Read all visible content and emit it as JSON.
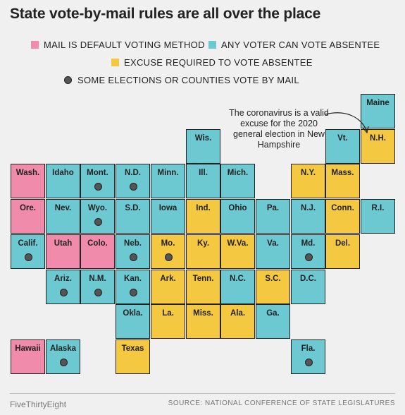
{
  "title": "State vote-by-mail rules are all over the place",
  "legend": {
    "default": "MAIL IS DEFAULT VOTING METHOD",
    "any": "ANY VOTER CAN VOTE ABSENTEE",
    "excuse": "EXCUSE REQUIRED TO VOTE ABSENTEE",
    "dot": "SOME ELECTIONS OR COUNTIES VOTE BY MAIL"
  },
  "colors": {
    "default": "#F08BAB",
    "any": "#6CC8D1",
    "excuse": "#F5C842",
    "background": "#F0F0F0"
  },
  "annotation": "The coronavirus is a valid excuse for the 2020 general election in New Hampshire",
  "states": [
    {
      "abbr": "Maine",
      "col": 10,
      "row": 0,
      "category": "any",
      "dot": false
    },
    {
      "abbr": "Wis.",
      "col": 5,
      "row": 1,
      "category": "any",
      "dot": false
    },
    {
      "abbr": "Vt.",
      "col": 9,
      "row": 1,
      "category": "any",
      "dot": false
    },
    {
      "abbr": "N.H.",
      "col": 10,
      "row": 1,
      "category": "excuse",
      "dot": false
    },
    {
      "abbr": "Wash.",
      "col": 0,
      "row": 2,
      "category": "default",
      "dot": false
    },
    {
      "abbr": "Idaho",
      "col": 1,
      "row": 2,
      "category": "any",
      "dot": false
    },
    {
      "abbr": "Mont.",
      "col": 2,
      "row": 2,
      "category": "any",
      "dot": true
    },
    {
      "abbr": "N.D.",
      "col": 3,
      "row": 2,
      "category": "any",
      "dot": true
    },
    {
      "abbr": "Minn.",
      "col": 4,
      "row": 2,
      "category": "any",
      "dot": false
    },
    {
      "abbr": "Ill.",
      "col": 5,
      "row": 2,
      "category": "any",
      "dot": false
    },
    {
      "abbr": "Mich.",
      "col": 6,
      "row": 2,
      "category": "any",
      "dot": false
    },
    {
      "abbr": "N.Y.",
      "col": 8,
      "row": 2,
      "category": "excuse",
      "dot": false
    },
    {
      "abbr": "Mass.",
      "col": 9,
      "row": 2,
      "category": "excuse",
      "dot": false
    },
    {
      "abbr": "Ore.",
      "col": 0,
      "row": 3,
      "category": "default",
      "dot": false
    },
    {
      "abbr": "Nev.",
      "col": 1,
      "row": 3,
      "category": "any",
      "dot": false
    },
    {
      "abbr": "Wyo.",
      "col": 2,
      "row": 3,
      "category": "any",
      "dot": true
    },
    {
      "abbr": "S.D.",
      "col": 3,
      "row": 3,
      "category": "any",
      "dot": false
    },
    {
      "abbr": "Iowa",
      "col": 4,
      "row": 3,
      "category": "any",
      "dot": false
    },
    {
      "abbr": "Ind.",
      "col": 5,
      "row": 3,
      "category": "excuse",
      "dot": false
    },
    {
      "abbr": "Ohio",
      "col": 6,
      "row": 3,
      "category": "any",
      "dot": false
    },
    {
      "abbr": "Pa.",
      "col": 7,
      "row": 3,
      "category": "any",
      "dot": false
    },
    {
      "abbr": "N.J.",
      "col": 8,
      "row": 3,
      "category": "any",
      "dot": false
    },
    {
      "abbr": "Conn.",
      "col": 9,
      "row": 3,
      "category": "excuse",
      "dot": false
    },
    {
      "abbr": "R.I.",
      "col": 10,
      "row": 3,
      "category": "any",
      "dot": false
    },
    {
      "abbr": "Calif.",
      "col": 0,
      "row": 4,
      "category": "any",
      "dot": true
    },
    {
      "abbr": "Utah",
      "col": 1,
      "row": 4,
      "category": "default",
      "dot": false
    },
    {
      "abbr": "Colo.",
      "col": 2,
      "row": 4,
      "category": "default",
      "dot": false
    },
    {
      "abbr": "Neb.",
      "col": 3,
      "row": 4,
      "category": "any",
      "dot": true
    },
    {
      "abbr": "Mo.",
      "col": 4,
      "row": 4,
      "category": "excuse",
      "dot": true
    },
    {
      "abbr": "Ky.",
      "col": 5,
      "row": 4,
      "category": "excuse",
      "dot": false
    },
    {
      "abbr": "W.Va.",
      "col": 6,
      "row": 4,
      "category": "excuse",
      "dot": false
    },
    {
      "abbr": "Va.",
      "col": 7,
      "row": 4,
      "category": "any",
      "dot": false
    },
    {
      "abbr": "Md.",
      "col": 8,
      "row": 4,
      "category": "any",
      "dot": true
    },
    {
      "abbr": "Del.",
      "col": 9,
      "row": 4,
      "category": "excuse",
      "dot": false
    },
    {
      "abbr": "Ariz.",
      "col": 1,
      "row": 5,
      "category": "any",
      "dot": true
    },
    {
      "abbr": "N.M.",
      "col": 2,
      "row": 5,
      "category": "any",
      "dot": true
    },
    {
      "abbr": "Kan.",
      "col": 3,
      "row": 5,
      "category": "any",
      "dot": true
    },
    {
      "abbr": "Ark.",
      "col": 4,
      "row": 5,
      "category": "excuse",
      "dot": false
    },
    {
      "abbr": "Tenn.",
      "col": 5,
      "row": 5,
      "category": "excuse",
      "dot": false
    },
    {
      "abbr": "N.C.",
      "col": 6,
      "row": 5,
      "category": "any",
      "dot": false
    },
    {
      "abbr": "S.C.",
      "col": 7,
      "row": 5,
      "category": "excuse",
      "dot": false
    },
    {
      "abbr": "D.C.",
      "col": 8,
      "row": 5,
      "category": "any",
      "dot": false
    },
    {
      "abbr": "Okla.",
      "col": 3,
      "row": 6,
      "category": "any",
      "dot": false
    },
    {
      "abbr": "La.",
      "col": 4,
      "row": 6,
      "category": "excuse",
      "dot": false
    },
    {
      "abbr": "Miss.",
      "col": 5,
      "row": 6,
      "category": "excuse",
      "dot": false
    },
    {
      "abbr": "Ala.",
      "col": 6,
      "row": 6,
      "category": "excuse",
      "dot": false
    },
    {
      "abbr": "Ga.",
      "col": 7,
      "row": 6,
      "category": "any",
      "dot": false
    },
    {
      "abbr": "Hawaii",
      "col": 0,
      "row": 7,
      "category": "default",
      "dot": false
    },
    {
      "abbr": "Alaska",
      "col": 1,
      "row": 7,
      "category": "any",
      "dot": true
    },
    {
      "abbr": "Texas",
      "col": 3,
      "row": 7,
      "category": "excuse",
      "dot": false
    },
    {
      "abbr": "Fla.",
      "col": 8,
      "row": 7,
      "category": "any",
      "dot": true
    }
  ],
  "footer": {
    "brand": "FiveThirtyEight",
    "source": "SOURCE: NATIONAL CONFERENCE OF STATE LEGISLATURES"
  }
}
